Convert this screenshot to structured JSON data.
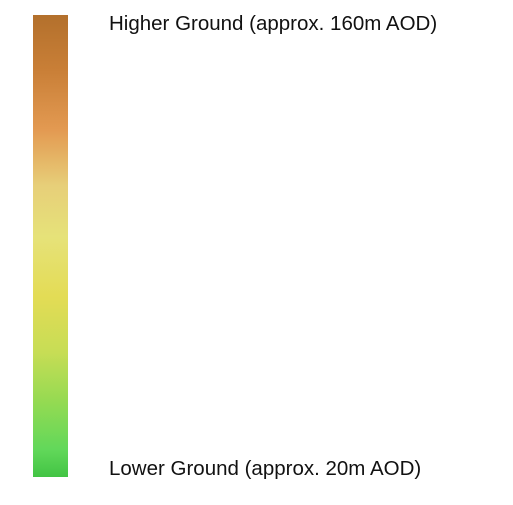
{
  "legend": {
    "high_label": "Higher Ground (approx. 160m AOD)",
    "low_label": "Lower Ground (approx. 20m AOD)",
    "ramp_colors": {
      "high": "#b3702c",
      "mid_orange": "#e39a52",
      "mid_yellow": "#e6e279",
      "low_green": "#62d85a",
      "low": "#42c444"
    },
    "high_value_m_aod": 160,
    "low_value_m_aod": 20
  }
}
